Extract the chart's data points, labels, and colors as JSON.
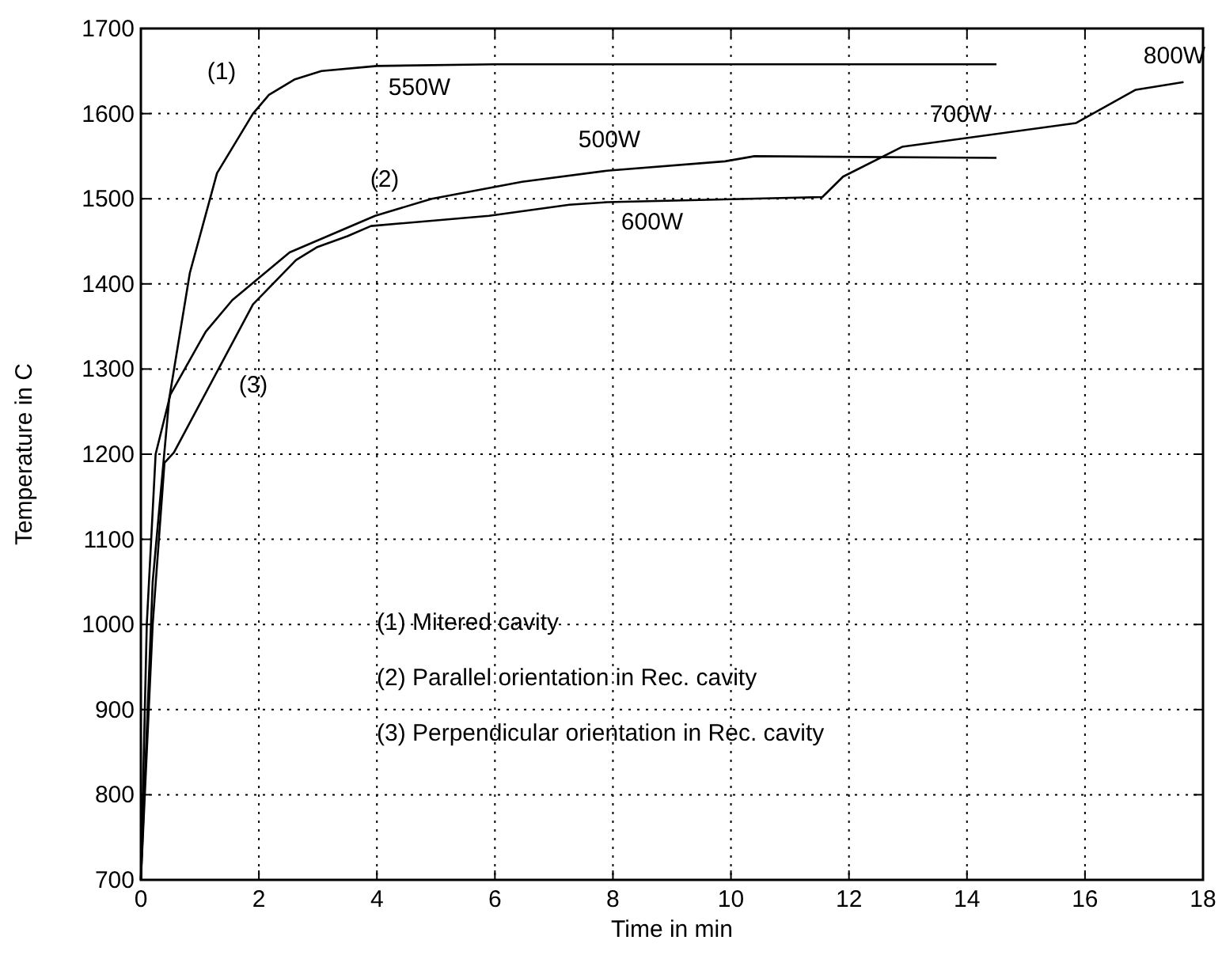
{
  "chart_data": {
    "type": "line",
    "xlabel": "Time in min",
    "ylabel": "Temperature in C",
    "xlim": [
      0,
      18
    ],
    "ylim": [
      700,
      1700
    ],
    "xticks": [
      0,
      2,
      4,
      6,
      8,
      10,
      12,
      14,
      16,
      18
    ],
    "yticks": [
      700,
      800,
      900,
      1000,
      1100,
      1200,
      1300,
      1400,
      1500,
      1600,
      1700
    ],
    "grid": true,
    "line_style": "solid",
    "marker": "none",
    "series": [
      {
        "color": "#000000",
        "x": [
          0,
          0.2,
          0.48,
          0.83,
          1.29,
          1.9,
          2.17,
          2.6,
          3.06,
          4,
          6,
          10,
          14.5
        ],
        "values": [
          700,
          1050,
          1265,
          1413,
          1530,
          1600,
          1622,
          1640,
          1650,
          1656,
          1658,
          1658,
          1658
        ]
      },
      {
        "color": "#000000",
        "x": [
          0,
          0.1,
          0.25,
          0.5,
          1.1,
          1.55,
          2.52,
          3.97,
          4.93,
          6.46,
          7.9,
          9.9,
          10.4,
          14.5
        ],
        "values": [
          700,
          1000,
          1200,
          1270,
          1344,
          1381,
          1437,
          1480,
          1500,
          1520,
          1533,
          1544,
          1550,
          1548
        ]
      },
      {
        "color": "#000000",
        "x": [
          0,
          0.2,
          0.4,
          0.56,
          1.9,
          2.63,
          2.98,
          3.5,
          3.9,
          5.9,
          7.26,
          7.9,
          11.55,
          11.9,
          12.9,
          15.85,
          16.86,
          17.67
        ],
        "values": [
          700,
          1000,
          1190,
          1202,
          1376,
          1428,
          1443,
          1456,
          1468,
          1480,
          1493,
          1496,
          1502,
          1526,
          1561,
          1589,
          1628,
          1637
        ]
      }
    ],
    "annotations": [
      "(1)",
      "(2)",
      "(3)",
      "550W",
      "500W",
      "600W",
      "700W",
      "800W",
      "(1) Mitered cavity",
      "(2) Parallel orientation in Rec. cavity",
      "(3) Perpendicular orientation in Rec. cavity"
    ]
  }
}
